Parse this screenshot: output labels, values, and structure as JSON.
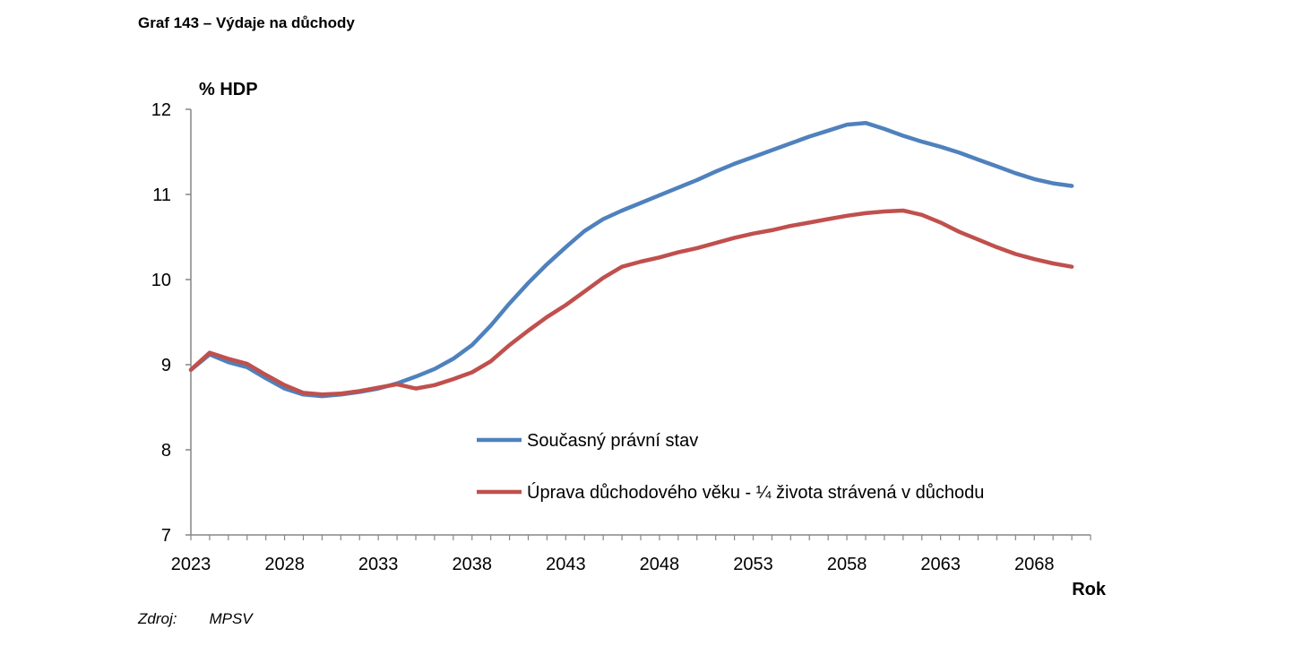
{
  "title": "Graf 143 – Výdaje na důchody",
  "source": {
    "label": "Zdroj:",
    "value": "MPSV"
  },
  "chart_data": {
    "type": "line",
    "ylabel": "% HDP",
    "xlabel": "Rok",
    "ylim": [
      7,
      12
    ],
    "yticks": [
      7,
      8,
      9,
      10,
      11,
      12
    ],
    "xlim": [
      2023,
      2071
    ],
    "xticks": [
      2023,
      2028,
      2033,
      2038,
      2043,
      2048,
      2053,
      2058,
      2063,
      2068
    ],
    "grid": false,
    "legend_position": "center-right",
    "x": [
      2023,
      2024,
      2025,
      2026,
      2027,
      2028,
      2029,
      2030,
      2031,
      2032,
      2033,
      2034,
      2035,
      2036,
      2037,
      2038,
      2039,
      2040,
      2041,
      2042,
      2043,
      2044,
      2045,
      2046,
      2047,
      2048,
      2049,
      2050,
      2051,
      2052,
      2053,
      2054,
      2055,
      2056,
      2057,
      2058,
      2059,
      2060,
      2061,
      2062,
      2063,
      2064,
      2065,
      2066,
      2067,
      2068,
      2069,
      2070
    ],
    "series": [
      {
        "name": "Současný právní stav",
        "color": "#4f81bd",
        "values": [
          8.94,
          9.12,
          9.03,
          8.97,
          8.84,
          8.72,
          8.65,
          8.63,
          8.65,
          8.68,
          8.72,
          8.78,
          8.86,
          8.95,
          9.07,
          9.23,
          9.46,
          9.72,
          9.96,
          10.18,
          10.38,
          10.57,
          10.71,
          10.81,
          10.9,
          10.99,
          11.08,
          11.17,
          11.27,
          11.36,
          11.44,
          11.52,
          11.6,
          11.68,
          11.75,
          11.82,
          11.84,
          11.77,
          11.69,
          11.62,
          11.56,
          11.49,
          11.41,
          11.33,
          11.25,
          11.18,
          11.13,
          11.1
        ]
      },
      {
        "name": "Úprava důchodového věku - ¼ života strávená v důchodu",
        "color": "#c0504d",
        "values": [
          8.94,
          9.14,
          9.07,
          9.01,
          8.88,
          8.76,
          8.67,
          8.65,
          8.66,
          8.69,
          8.73,
          8.77,
          8.72,
          8.76,
          8.83,
          8.91,
          9.04,
          9.23,
          9.4,
          9.56,
          9.7,
          9.86,
          10.02,
          10.15,
          10.21,
          10.26,
          10.32,
          10.37,
          10.43,
          10.49,
          10.54,
          10.58,
          10.63,
          10.67,
          10.71,
          10.75,
          10.78,
          10.8,
          10.81,
          10.76,
          10.67,
          10.56,
          10.47,
          10.38,
          10.3,
          10.24,
          10.19,
          10.15
        ]
      }
    ]
  }
}
